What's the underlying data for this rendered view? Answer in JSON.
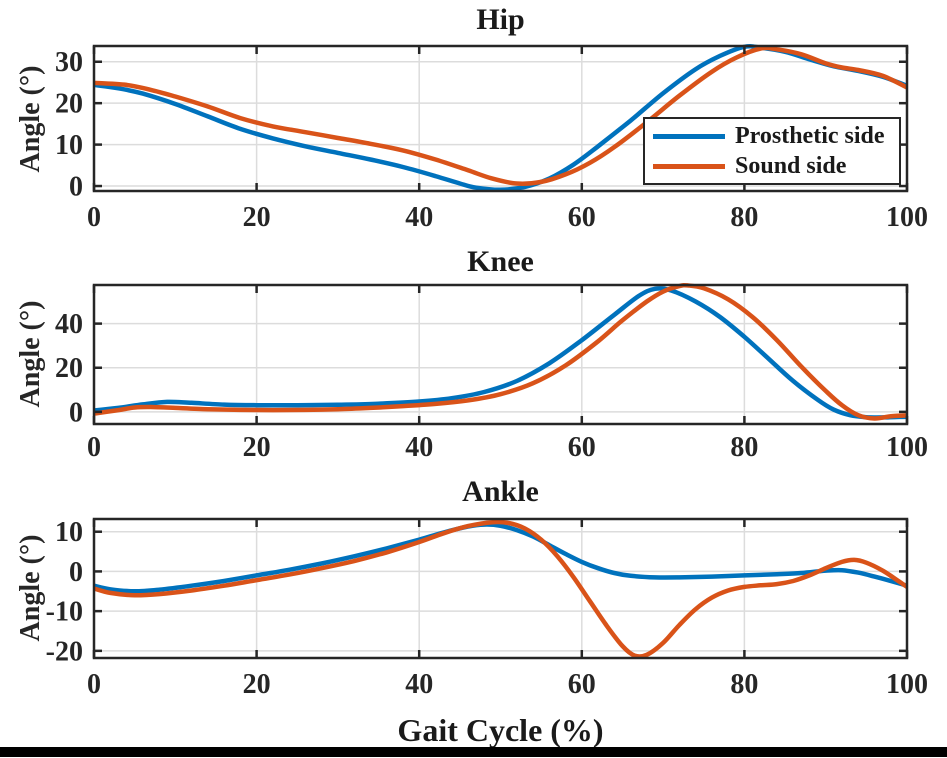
{
  "figure": {
    "background": "#ffffff",
    "frame_color": "#262626",
    "grid_color": "#dcdcdc",
    "text_color": "#262626",
    "bottom_bar_color": "#000000",
    "x_axis_label": "Gait Cycle (%)"
  },
  "legend": {
    "position": "inside lower-right of Hip subplot",
    "border_color": "#262626",
    "entries": [
      {
        "label": "Prosthetic side",
        "color": "#0072BD"
      },
      {
        "label": "Sound side",
        "color": "#D95319"
      }
    ]
  },
  "chart_data": [
    {
      "type": "line",
      "title": "Hip",
      "ylabel": "Angle (°)",
      "xlabel": "",
      "xlim": [
        0,
        100
      ],
      "ylim": [
        -1.2,
        33.8
      ],
      "xticks": [
        0,
        20,
        40,
        60,
        80,
        100
      ],
      "yticks": [
        0,
        10,
        20,
        30
      ],
      "grid": true,
      "series": [
        {
          "name": "Prosthetic side",
          "color": "#0072BD",
          "points": [
            [
              0,
              24.4
            ],
            [
              3,
              23.6
            ],
            [
              6,
              22.3
            ],
            [
              10,
              19.8
            ],
            [
              14,
              16.8
            ],
            [
              18,
              13.8
            ],
            [
              22,
              11.5
            ],
            [
              26,
              9.6
            ],
            [
              30,
              8.0
            ],
            [
              34,
              6.4
            ],
            [
              38,
              4.6
            ],
            [
              42,
              2.4
            ],
            [
              45,
              0.6
            ],
            [
              47,
              -0.4
            ],
            [
              50,
              -0.9
            ],
            [
              53,
              -0.2
            ],
            [
              56,
              1.8
            ],
            [
              59,
              5.2
            ],
            [
              62,
              9.6
            ],
            [
              66,
              15.8
            ],
            [
              70,
              22.4
            ],
            [
              74,
              28.2
            ],
            [
              77,
              31.4
            ],
            [
              80,
              33.6
            ],
            [
              82,
              33.4
            ],
            [
              85,
              32.4
            ],
            [
              88,
              30.6
            ],
            [
              91,
              28.9
            ],
            [
              94,
              27.8
            ],
            [
              97,
              26.4
            ],
            [
              100,
              24.2
            ]
          ]
        },
        {
          "name": "Sound side",
          "color": "#D95319",
          "points": [
            [
              0,
              24.9
            ],
            [
              4,
              24.4
            ],
            [
              7,
              23.2
            ],
            [
              10,
              21.6
            ],
            [
              14,
              19.2
            ],
            [
              18,
              16.4
            ],
            [
              22,
              14.4
            ],
            [
              26,
              13.0
            ],
            [
              30,
              11.6
            ],
            [
              34,
              10.2
            ],
            [
              38,
              8.6
            ],
            [
              42,
              6.4
            ],
            [
              46,
              3.8
            ],
            [
              49,
              1.8
            ],
            [
              52,
              0.6
            ],
            [
              55,
              1.0
            ],
            [
              58,
              2.8
            ],
            [
              61,
              5.6
            ],
            [
              64,
              9.4
            ],
            [
              68,
              15.4
            ],
            [
              72,
              21.8
            ],
            [
              76,
              27.6
            ],
            [
              79,
              31.0
            ],
            [
              82,
              33.2
            ],
            [
              84,
              33.0
            ],
            [
              87,
              31.8
            ],
            [
              90,
              29.6
            ],
            [
              92,
              28.6
            ],
            [
              94,
              28.0
            ],
            [
              97,
              26.6
            ],
            [
              100,
              23.8
            ]
          ]
        }
      ]
    },
    {
      "type": "line",
      "title": "Knee",
      "ylabel": "Angle (°)",
      "xlabel": "",
      "xlim": [
        0,
        100
      ],
      "ylim": [
        -5.5,
        57.5
      ],
      "xticks": [
        0,
        20,
        40,
        60,
        80,
        100
      ],
      "yticks": [
        0,
        20,
        40
      ],
      "grid": true,
      "series": [
        {
          "name": "Prosthetic side",
          "color": "#0072BD",
          "points": [
            [
              0,
              0.6
            ],
            [
              3,
              1.8
            ],
            [
              6,
              3.4
            ],
            [
              9,
              4.5
            ],
            [
              12,
              4.1
            ],
            [
              16,
              3.3
            ],
            [
              20,
              3.0
            ],
            [
              25,
              3.0
            ],
            [
              30,
              3.2
            ],
            [
              35,
              3.7
            ],
            [
              40,
              4.7
            ],
            [
              44,
              6.2
            ],
            [
              48,
              9.0
            ],
            [
              52,
              14.0
            ],
            [
              56,
              22.0
            ],
            [
              60,
              32.5
            ],
            [
              64,
              44.0
            ],
            [
              67,
              52.5
            ],
            [
              69,
              55.8
            ],
            [
              71,
              55.0
            ],
            [
              74,
              50.0
            ],
            [
              77,
              43.0
            ],
            [
              80,
              34.0
            ],
            [
              83,
              24.0
            ],
            [
              86,
              14.0
            ],
            [
              89,
              5.5
            ],
            [
              91,
              1.0
            ],
            [
              93,
              -1.5
            ],
            [
              95,
              -2.4
            ],
            [
              97,
              -2.5
            ],
            [
              100,
              -2.2
            ]
          ]
        },
        {
          "name": "Sound side",
          "color": "#D95319",
          "points": [
            [
              0,
              -0.8
            ],
            [
              3,
              0.8
            ],
            [
              5,
              2.0
            ],
            [
              7,
              2.2
            ],
            [
              10,
              1.8
            ],
            [
              14,
              1.2
            ],
            [
              18,
              0.9
            ],
            [
              22,
              0.8
            ],
            [
              26,
              0.9
            ],
            [
              30,
              1.2
            ],
            [
              34,
              1.8
            ],
            [
              38,
              2.6
            ],
            [
              42,
              3.6
            ],
            [
              46,
              5.2
            ],
            [
              50,
              8.0
            ],
            [
              54,
              13.0
            ],
            [
              58,
              21.0
            ],
            [
              62,
              32.0
            ],
            [
              65,
              41.5
            ],
            [
              68,
              50.0
            ],
            [
              70,
              54.5
            ],
            [
              72,
              57.0
            ],
            [
              73,
              57.3
            ],
            [
              75,
              56.0
            ],
            [
              78,
              51.0
            ],
            [
              81,
              43.0
            ],
            [
              84,
              32.5
            ],
            [
              87,
              20.5
            ],
            [
              90,
              9.5
            ],
            [
              92,
              3.0
            ],
            [
              94,
              -1.5
            ],
            [
              96,
              -3.0
            ],
            [
              98,
              -2.0
            ],
            [
              100,
              -1.6
            ]
          ]
        }
      ]
    },
    {
      "type": "line",
      "title": "Ankle",
      "ylabel": "Angle (°)",
      "xlabel": "Gait Cycle (%)",
      "xlim": [
        0,
        100
      ],
      "ylim": [
        -21.8,
        13.2
      ],
      "xticks": [
        0,
        20,
        40,
        60,
        80,
        100
      ],
      "yticks": [
        -20,
        -10,
        0,
        10
      ],
      "grid": true,
      "series": [
        {
          "name": "Prosthetic side",
          "color": "#0072BD",
          "points": [
            [
              0,
              -3.6
            ],
            [
              2,
              -4.5
            ],
            [
              5,
              -5.0
            ],
            [
              8,
              -4.6
            ],
            [
              12,
              -3.6
            ],
            [
              16,
              -2.4
            ],
            [
              20,
              -1.0
            ],
            [
              24,
              0.4
            ],
            [
              28,
              2.0
            ],
            [
              32,
              3.8
            ],
            [
              36,
              5.8
            ],
            [
              40,
              8.0
            ],
            [
              43,
              9.8
            ],
            [
              46,
              11.3
            ],
            [
              48,
              11.8
            ],
            [
              50,
              11.5
            ],
            [
              52,
              10.4
            ],
            [
              54,
              8.8
            ],
            [
              56,
              6.6
            ],
            [
              58,
              4.4
            ],
            [
              60,
              2.4
            ],
            [
              62,
              0.8
            ],
            [
              64,
              -0.4
            ],
            [
              66,
              -1.1
            ],
            [
              69,
              -1.5
            ],
            [
              72,
              -1.5
            ],
            [
              76,
              -1.3
            ],
            [
              80,
              -1.0
            ],
            [
              84,
              -0.7
            ],
            [
              87,
              -0.4
            ],
            [
              90,
              0.2
            ],
            [
              92,
              0.3
            ],
            [
              94,
              -0.3
            ],
            [
              96,
              -1.3
            ],
            [
              98,
              -2.4
            ],
            [
              100,
              -3.6
            ]
          ]
        },
        {
          "name": "Sound side",
          "color": "#D95319",
          "points": [
            [
              0,
              -4.3
            ],
            [
              2,
              -5.4
            ],
            [
              5,
              -6.0
            ],
            [
              8,
              -5.7
            ],
            [
              12,
              -4.8
            ],
            [
              16,
              -3.6
            ],
            [
              20,
              -2.2
            ],
            [
              24,
              -0.8
            ],
            [
              28,
              0.8
            ],
            [
              32,
              2.6
            ],
            [
              36,
              4.8
            ],
            [
              40,
              7.4
            ],
            [
              43,
              9.6
            ],
            [
              46,
              11.4
            ],
            [
              49,
              12.4
            ],
            [
              51,
              12.2
            ],
            [
              53,
              10.8
            ],
            [
              55,
              8.0
            ],
            [
              57,
              3.8
            ],
            [
              59,
              -1.5
            ],
            [
              61,
              -7.5
            ],
            [
              63,
              -13.5
            ],
            [
              65,
              -18.8
            ],
            [
              66.5,
              -21.2
            ],
            [
              68,
              -21.0
            ],
            [
              70,
              -18.0
            ],
            [
              72,
              -13.5
            ],
            [
              74,
              -9.5
            ],
            [
              76,
              -6.6
            ],
            [
              78,
              -4.8
            ],
            [
              80,
              -3.9
            ],
            [
              82,
              -3.5
            ],
            [
              84,
              -3.2
            ],
            [
              86,
              -2.4
            ],
            [
              88,
              -1.0
            ],
            [
              90,
              0.8
            ],
            [
              92,
              2.4
            ],
            [
              93.5,
              2.9
            ],
            [
              95,
              2.2
            ],
            [
              97,
              0.2
            ],
            [
              99,
              -2.5
            ],
            [
              100,
              -3.9
            ]
          ]
        }
      ]
    }
  ]
}
